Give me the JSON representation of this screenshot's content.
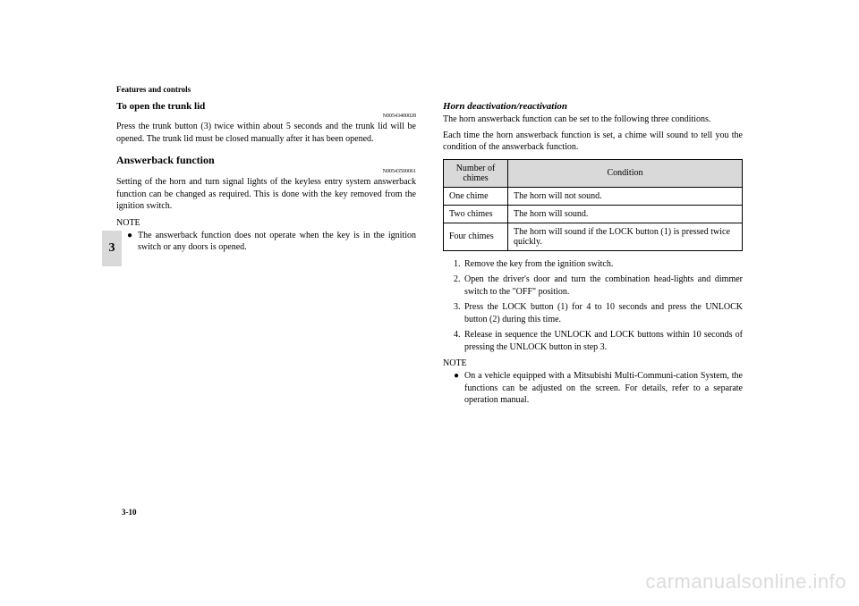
{
  "header": "Features and controls",
  "sideTab": "3",
  "pageNumber": "3-10",
  "watermark": "carmanualsonline.info",
  "left": {
    "sec1": {
      "title": "To open the trunk lid",
      "ref": "N00543400028",
      "body": "Press the trunk button (3) twice within about 5 seconds and the trunk lid will be opened. The trunk lid must be closed manually after it has been opened."
    },
    "sec2": {
      "title": "Answerback function",
      "ref": "N00543500061",
      "body": "Setting of the horn and turn signal lights of the keyless entry system answerback function can be changed as required. This is done with the key removed from the ignition switch."
    },
    "note": {
      "label": "NOTE",
      "text": "The answerback function does not operate when the key is in the ignition switch or any doors is opened."
    }
  },
  "right": {
    "title": "Horn deactivation/reactivation",
    "body1": "The horn answerback function can be set to the following three conditions.",
    "body2": "Each time the horn answerback function is set, a chime will sound to tell you the condition of the answerback function.",
    "table": {
      "h1": "Number of chimes",
      "h2": "Condition",
      "r1c1": "One chime",
      "r1c2": "The horn will not sound.",
      "r2c1": "Two chimes",
      "r2c2": "The horn will sound.",
      "r3c1": "Four chimes",
      "r3c2": "The horn will sound if the LOCK button (1) is pressed twice quickly."
    },
    "steps": {
      "s1": "Remove the key from the ignition switch.",
      "s2": "Open the driver's door and turn the combination head-lights and dimmer switch to the \"OFF\" position.",
      "s3": "Press the LOCK button (1) for 4 to 10 seconds and press the UNLOCK button (2) during this time.",
      "s4": "Release in sequence the UNLOCK and LOCK buttons within 10 seconds of pressing the UNLOCK button in step 3."
    },
    "note": {
      "label": "NOTE",
      "text": "On a vehicle equipped with a Mitsubishi Multi-Communi-cation System, the functions can be adjusted on the screen. For details, refer to a separate operation manual."
    }
  }
}
